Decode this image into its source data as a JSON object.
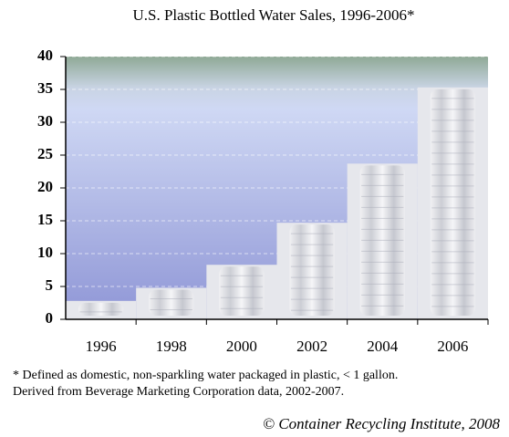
{
  "chart_data": {
    "type": "bar",
    "title": "U.S. Plastic Bottled Water Sales, 1996-2006*",
    "categories": [
      "1996",
      "1998",
      "2000",
      "2002",
      "2004",
      "2006"
    ],
    "values": [
      2.8,
      4.8,
      8.3,
      14.7,
      23.7,
      35.3
    ],
    "color": "#e6e7ec",
    "ylim": [
      0,
      40
    ],
    "yticks": [
      0,
      5,
      10,
      15,
      20,
      25,
      30,
      35,
      40
    ],
    "grid": true,
    "notes": [
      "* Defined as domestic, non-sparkling water packaged in plastic, < 1 gallon.",
      "Derived from Beverage Marketing Corporation data, 2002-2007."
    ],
    "source": "© Container Recycling Institute, 2008"
  }
}
